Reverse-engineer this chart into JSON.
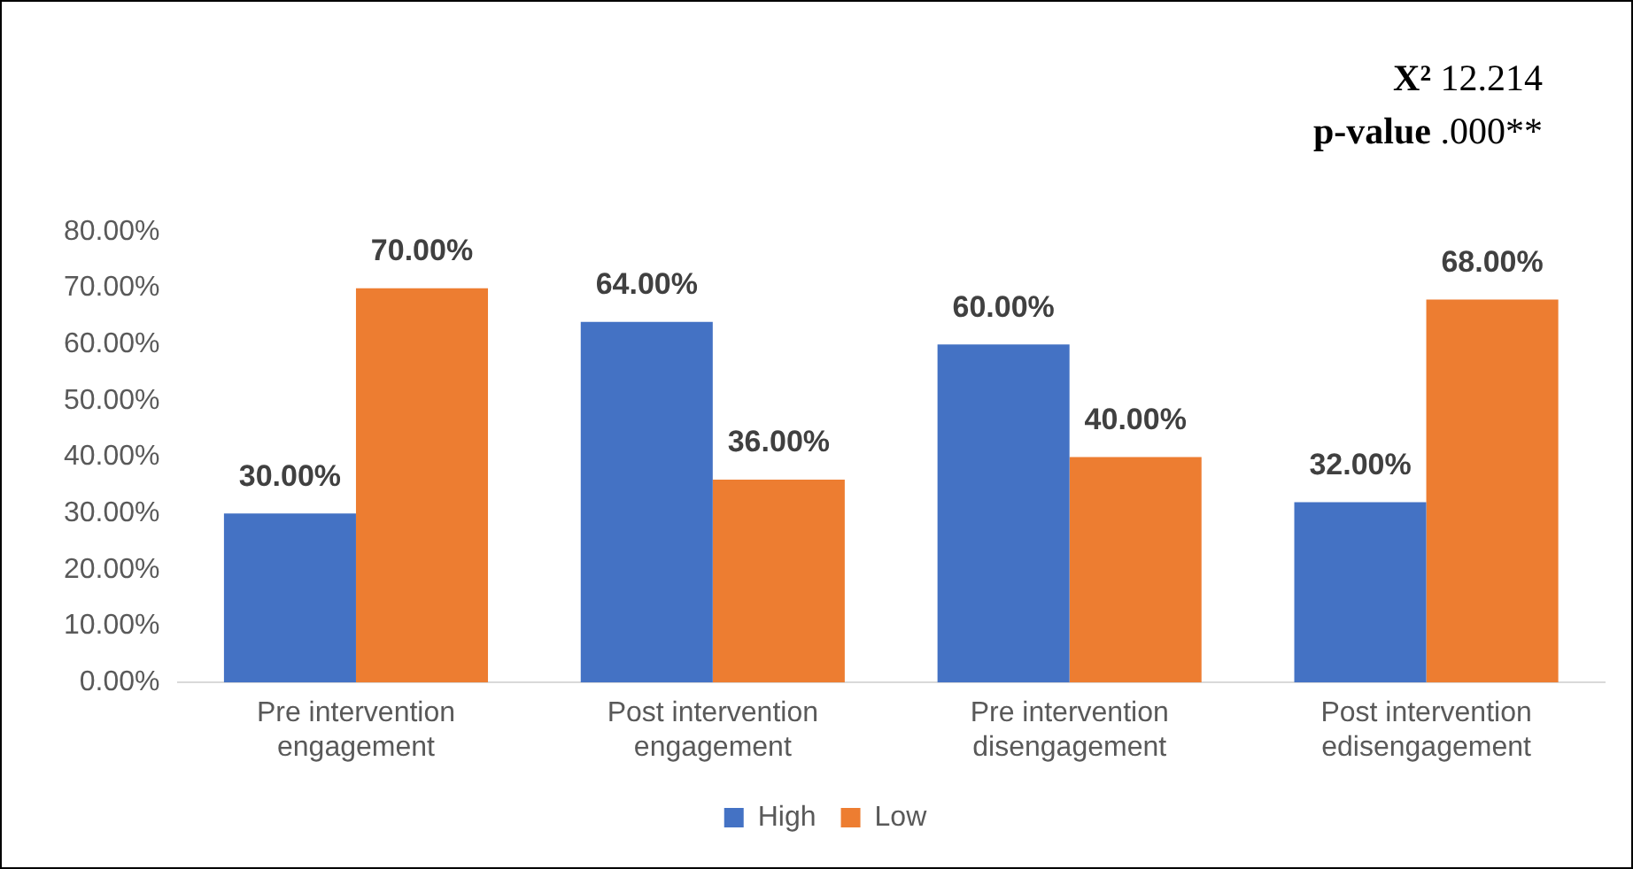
{
  "chart_data": {
    "type": "bar",
    "categories": [
      "Pre intervention engagement",
      "Post intervention engagement",
      "Pre intervention disengagement",
      "Post intervention edisengagement"
    ],
    "series": [
      {
        "name": "High",
        "color": "#4472c4",
        "values": [
          30,
          64,
          60,
          32
        ],
        "value_labels": [
          "30.00%",
          "64.00%",
          "60.00%",
          "32.00%"
        ]
      },
      {
        "name": "Low",
        "color": "#ed7d31",
        "values": [
          70,
          36,
          40,
          68
        ],
        "value_labels": [
          "70.00%",
          "36.00%",
          "40.00%",
          "68.00%"
        ]
      }
    ],
    "ylim": [
      0,
      80
    ],
    "yticks": [
      {
        "value": 0,
        "label": "0.00%"
      },
      {
        "value": 10,
        "label": "10.00%"
      },
      {
        "value": 20,
        "label": "20.00%"
      },
      {
        "value": 30,
        "label": "30.00%"
      },
      {
        "value": 40,
        "label": "40.00%"
      },
      {
        "value": 50,
        "label": "50.00%"
      },
      {
        "value": 60,
        "label": "60.00%"
      },
      {
        "value": 70,
        "label": "70.00%"
      },
      {
        "value": 80,
        "label": "80.00%"
      }
    ],
    "grid": false,
    "legend": "bottom",
    "annotations": [
      "X² 12.214",
      "p-value .000**"
    ]
  }
}
